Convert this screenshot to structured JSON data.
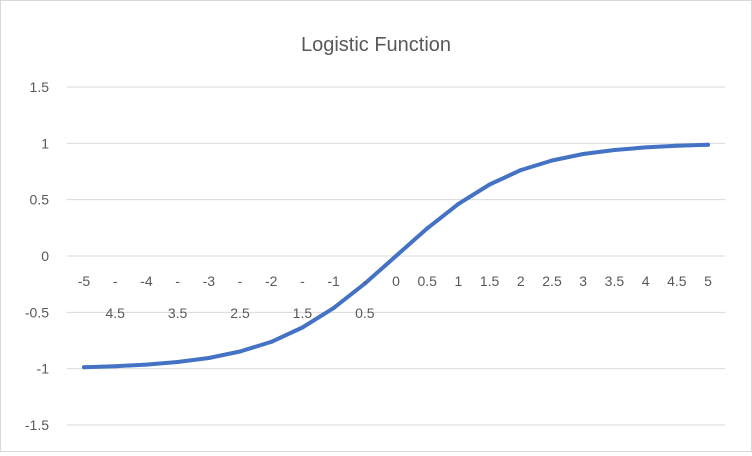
{
  "chart_data": {
    "type": "line",
    "title": "Logistic Function",
    "xlabel": "",
    "ylabel": "",
    "ylim": [
      -1.5,
      1.5
    ],
    "yticks": [
      1.5,
      1,
      0.5,
      0,
      -0.5,
      -1,
      -1.5
    ],
    "ytick_labels": [
      "1.5",
      "1",
      "0.5",
      "0",
      "-0.5",
      "-1",
      "-1.5"
    ],
    "grid": true,
    "legend": "none",
    "x": [
      -5,
      -4.5,
      -4,
      -3.5,
      -3,
      -2.5,
      -2,
      -1.5,
      -1,
      -0.5,
      0,
      0.5,
      1,
      1.5,
      2,
      2.5,
      3,
      3.5,
      4,
      4.5,
      5
    ],
    "x_tick_labels": [
      [
        "-5"
      ],
      [
        "-",
        "4.5"
      ],
      [
        "-4"
      ],
      [
        "-",
        "3.5"
      ],
      [
        "-3"
      ],
      [
        "-",
        "2.5"
      ],
      [
        "-2"
      ],
      [
        "-",
        "1.5"
      ],
      [
        "-1"
      ],
      [
        "-",
        "0.5"
      ],
      [
        "0"
      ],
      [
        "0.5"
      ],
      [
        "1"
      ],
      [
        "1.5"
      ],
      [
        "2"
      ],
      [
        "2.5"
      ],
      [
        "3"
      ],
      [
        "3.5"
      ],
      [
        "4"
      ],
      [
        "4.5"
      ],
      [
        "5"
      ]
    ],
    "series": [
      {
        "color": "#4472c4",
        "values": [
          -0.987,
          -0.978,
          -0.964,
          -0.941,
          -0.905,
          -0.848,
          -0.762,
          -0.635,
          -0.462,
          -0.245,
          0,
          0.245,
          0.462,
          0.635,
          0.762,
          0.848,
          0.905,
          0.941,
          0.964,
          0.978,
          0.987
        ]
      }
    ]
  }
}
